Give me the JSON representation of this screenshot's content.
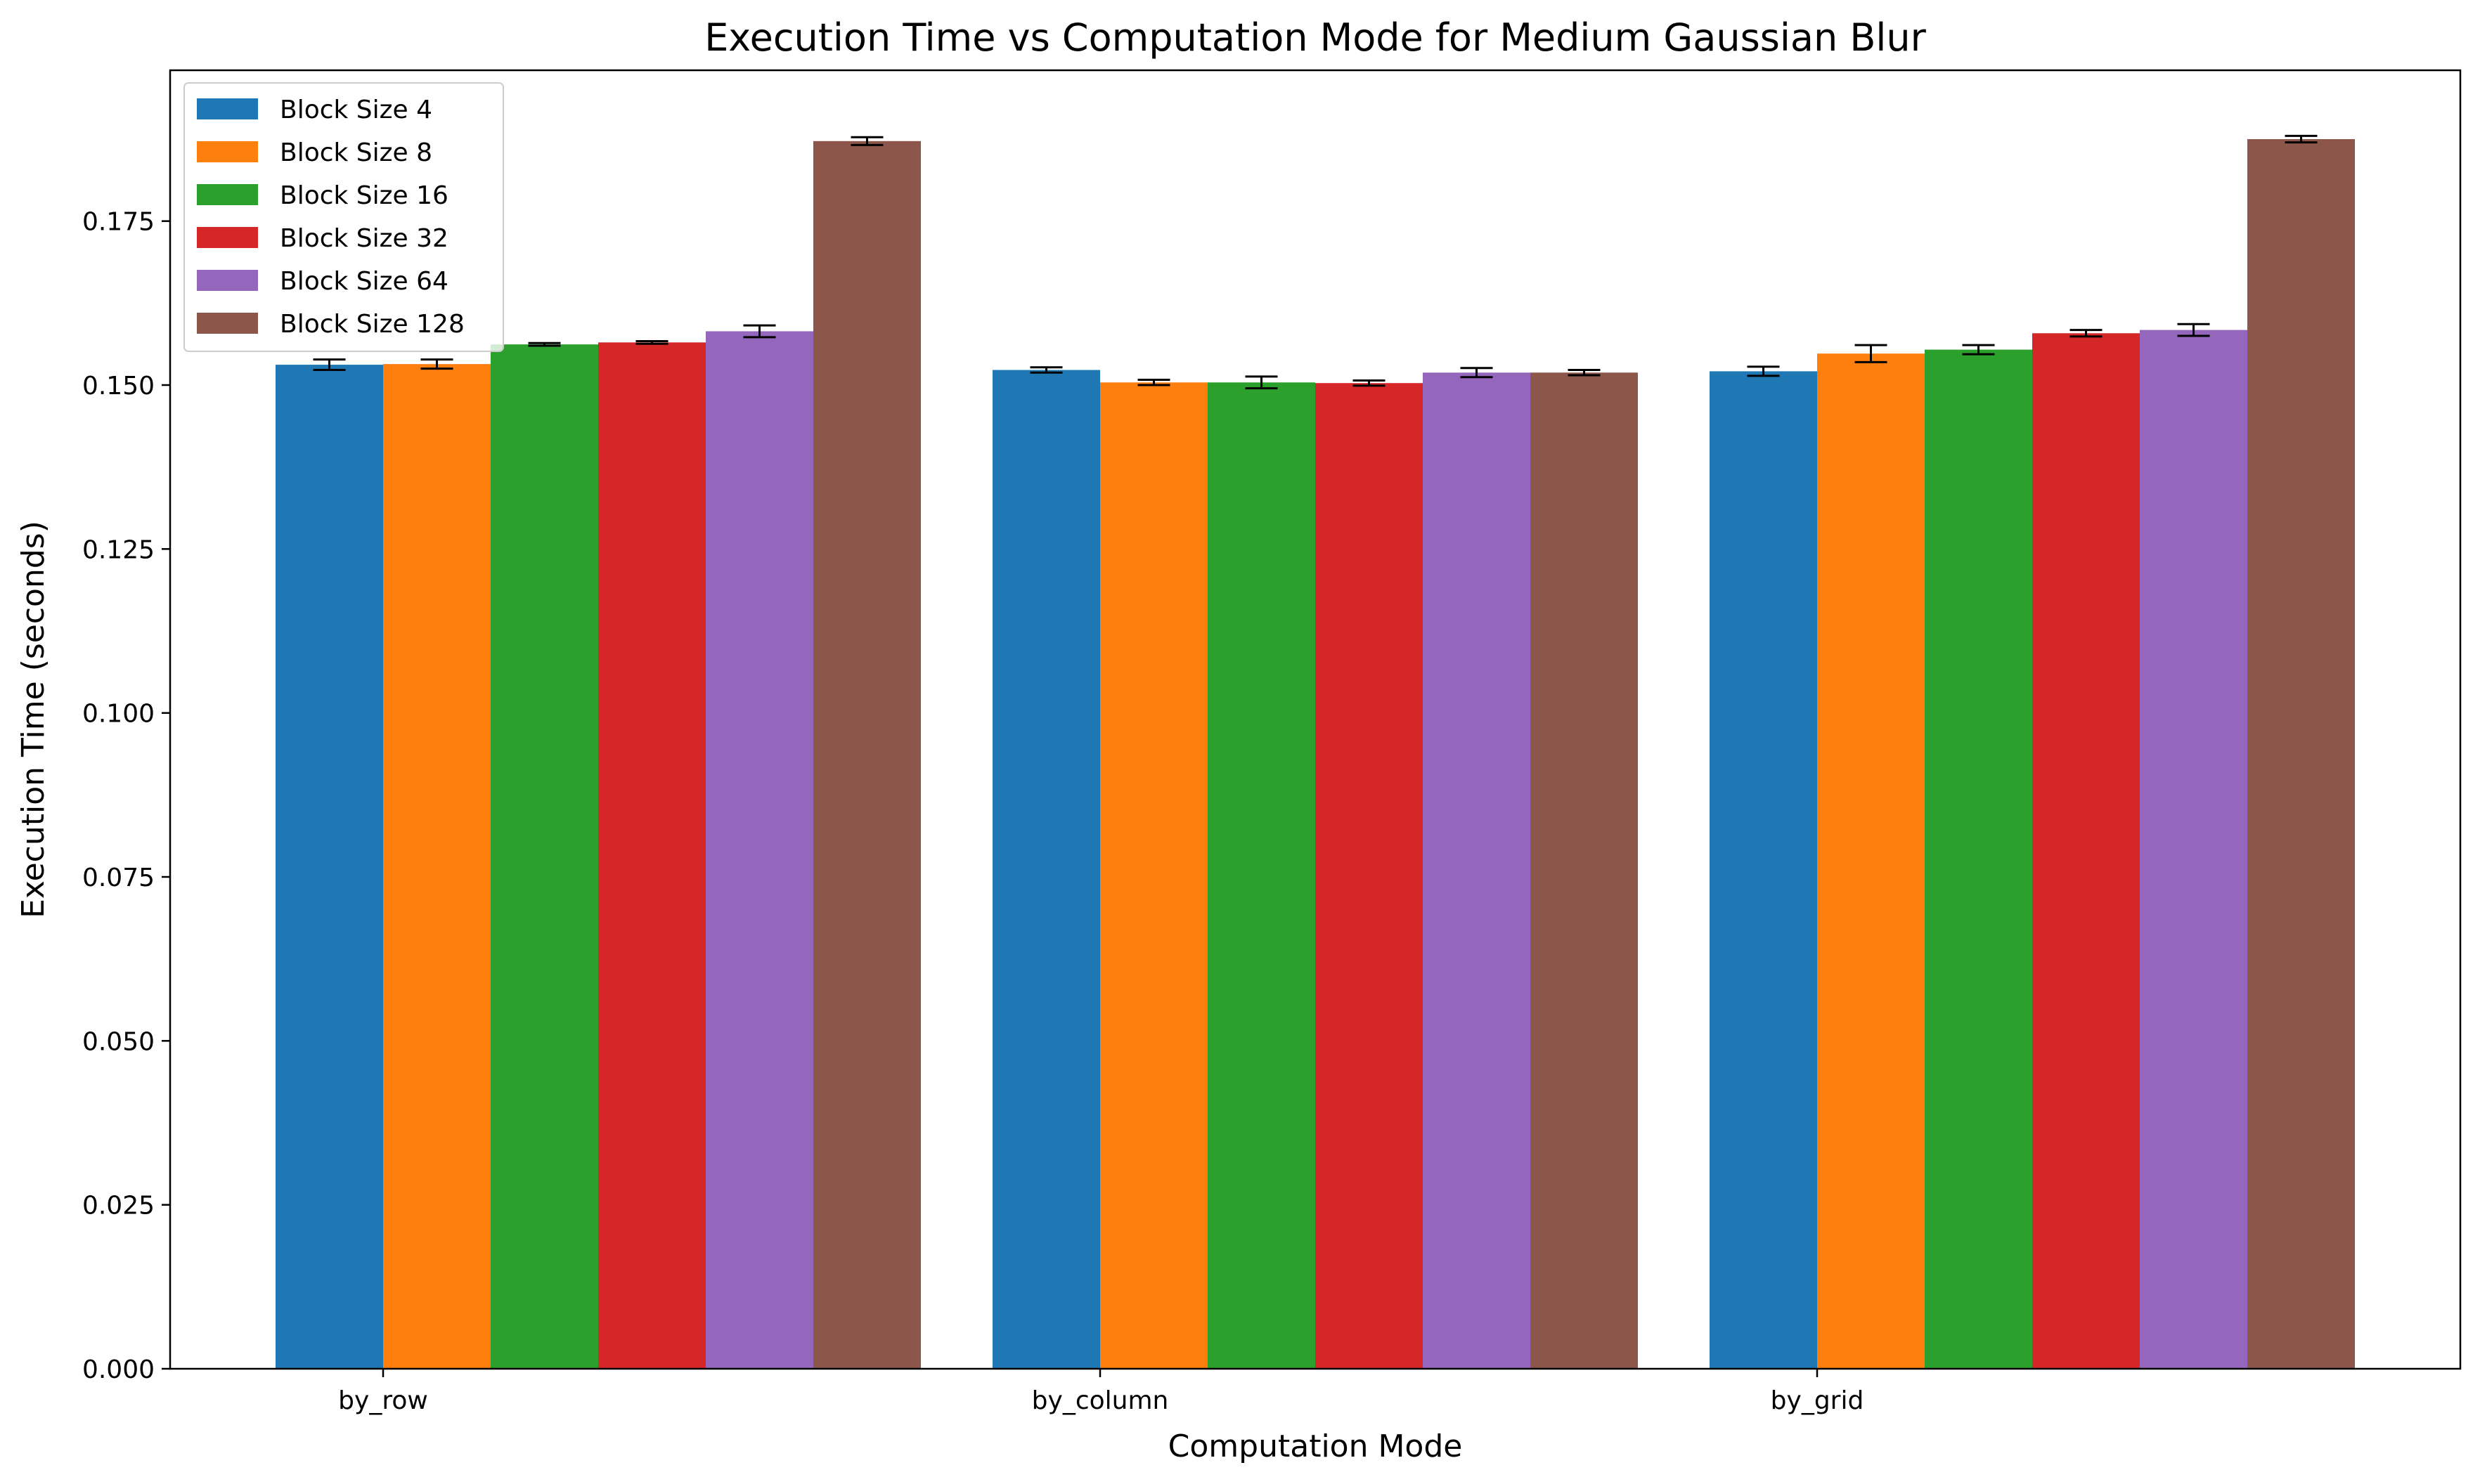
{
  "chart_data": {
    "type": "bar",
    "title": "Execution Time vs Computation Mode for Medium Gaussian Blur",
    "xlabel": "Computation Mode",
    "ylabel": "Execution Time (seconds)",
    "categories": [
      "by_row",
      "by_column",
      "by_grid"
    ],
    "ylim": [
      0,
      0.198
    ],
    "yticks": [
      0.0,
      0.025,
      0.05,
      0.075,
      0.1,
      0.125,
      0.15,
      0.175
    ],
    "ytick_labels": [
      "0.000",
      "0.025",
      "0.050",
      "0.075",
      "0.100",
      "0.125",
      "0.150",
      "0.175"
    ],
    "grid": false,
    "legend_position": "top-left",
    "error_bars": true,
    "series": [
      {
        "name": "Block Size 4",
        "color": "#1f77b4",
        "values": [
          0.1531,
          0.1523,
          0.1521
        ],
        "errors": [
          0.0008,
          0.0004,
          0.0007
        ]
      },
      {
        "name": "Block Size 8",
        "color": "#ff7f0e",
        "values": [
          0.1532,
          0.1504,
          0.1548
        ],
        "errors": [
          0.0007,
          0.0004,
          0.0013
        ]
      },
      {
        "name": "Block Size 16",
        "color": "#2ca02c",
        "values": [
          0.1562,
          0.1504,
          0.1554
        ],
        "errors": [
          0.0002,
          0.0009,
          0.0007
        ]
      },
      {
        "name": "Block Size 32",
        "color": "#d62728",
        "values": [
          0.1565,
          0.1503,
          0.1579
        ],
        "errors": [
          0.0002,
          0.0004,
          0.0005
        ]
      },
      {
        "name": "Block Size 64",
        "color": "#9467bd",
        "values": [
          0.1582,
          0.1519,
          0.1584
        ],
        "errors": [
          0.0009,
          0.0007,
          0.0009
        ]
      },
      {
        "name": "Block Size 128",
        "color": "#8c564b",
        "values": [
          0.1872,
          0.1519,
          0.1875
        ],
        "errors": [
          0.0006,
          0.0004,
          0.0005
        ]
      }
    ]
  }
}
